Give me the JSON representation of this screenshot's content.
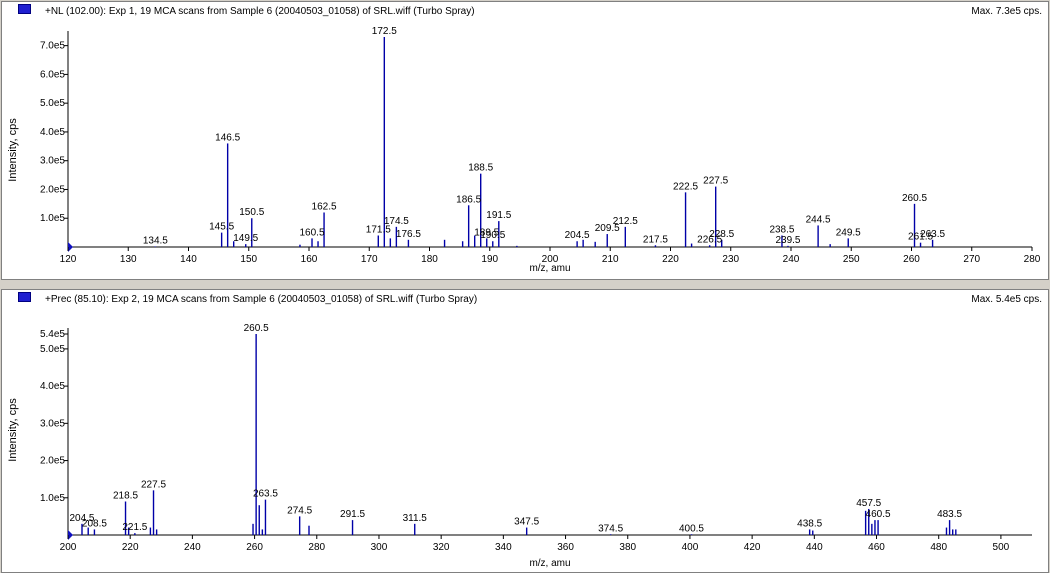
{
  "panes": [
    {
      "title": "+NL (102.00): Exp 1, 19 MCA scans from Sample 6 (20040503_01058) of SRL.wiff (Turbo Spray)",
      "max": "Max. 7.3e5 cps."
    },
    {
      "title": "+Prec (85.10): Exp 2, 19 MCA scans from Sample 6 (20040503_01058) of SRL.wiff (Turbo Spray)",
      "max": "Max. 5.4e5 cps."
    }
  ],
  "chart_data": [
    {
      "type": "bar",
      "title": "+NL (102.00): Exp 1, 19 MCA scans from Sample 6 (20040503_01058) of SRL.wiff (Turbo Spray)",
      "xlabel": "m/z, amu",
      "ylabel": "Intensity, cps",
      "xlim": [
        120,
        280
      ],
      "ylim": [
        0,
        730000
      ],
      "xticks": [
        120,
        130,
        140,
        150,
        160,
        170,
        180,
        190,
        200,
        210,
        220,
        230,
        240,
        250,
        260,
        270,
        280
      ],
      "yticks": [
        {
          "v": 100000,
          "label": "1.0e5"
        },
        {
          "v": 200000,
          "label": "2.0e5"
        },
        {
          "v": 300000,
          "label": "3.0e5"
        },
        {
          "v": 400000,
          "label": "4.0e5"
        },
        {
          "v": 500000,
          "label": "5.0e5"
        },
        {
          "v": 600000,
          "label": "6.0e5"
        },
        {
          "v": 700000,
          "label": "7.0e5"
        }
      ],
      "series": [
        {
          "values": [
            [
              134.5,
              2000
            ],
            [
              145.5,
              50000
            ],
            [
              146.5,
              360000
            ],
            [
              147.5,
              20000
            ],
            [
              149.5,
              10000
            ],
            [
              150.5,
              100000
            ],
            [
              158.5,
              8000
            ],
            [
              160.5,
              30000
            ],
            [
              161.5,
              20000
            ],
            [
              162.5,
              120000
            ],
            [
              171.5,
              40000
            ],
            [
              172.5,
              730000
            ],
            [
              173.5,
              30000
            ],
            [
              174.5,
              70000
            ],
            [
              176.5,
              25000
            ],
            [
              182.5,
              25000
            ],
            [
              185.5,
              20000
            ],
            [
              186.5,
              145000
            ],
            [
              187.5,
              40000
            ],
            [
              188.5,
              255000
            ],
            [
              189.5,
              30000
            ],
            [
              190.5,
              20000
            ],
            [
              191.5,
              90000
            ],
            [
              194.5,
              4000
            ],
            [
              204.5,
              20000
            ],
            [
              205.5,
              25000
            ],
            [
              207.5,
              18000
            ],
            [
              209.5,
              45000
            ],
            [
              212.5,
              70000
            ],
            [
              217.5,
              6000
            ],
            [
              222.5,
              190000
            ],
            [
              223.5,
              12000
            ],
            [
              226.5,
              6000
            ],
            [
              227.5,
              210000
            ],
            [
              228.5,
              25000
            ],
            [
              238.5,
              40000
            ],
            [
              239.5,
              4000
            ],
            [
              244.5,
              75000
            ],
            [
              246.5,
              10000
            ],
            [
              249.5,
              30000
            ],
            [
              260.5,
              150000
            ],
            [
              261.5,
              15000
            ],
            [
              263.5,
              25000
            ]
          ]
        }
      ],
      "annotations": [
        "172.5",
        "146.5",
        "188.5",
        "186.5",
        "191.5",
        "190.5",
        "189.5",
        "162.5",
        "160.5",
        "150.5",
        "149.5",
        "145.5",
        "134.5",
        "171.5",
        "174.5",
        "176.5",
        "204.5",
        "209.5",
        "212.5",
        "217.5",
        "222.5",
        "227.5",
        "226.5",
        "228.5",
        "238.5",
        "239.5",
        "244.5",
        "249.5",
        "260.5",
        "261.5",
        "263.5"
      ]
    },
    {
      "type": "bar",
      "title": "+Prec (85.10): Exp 2, 19 MCA scans from Sample 6 (20040503_01058) of SRL.wiff (Turbo Spray)",
      "xlabel": "m/z, amu",
      "ylabel": "Intensity, cps",
      "xlim": [
        200,
        510
      ],
      "ylim": [
        0,
        540000
      ],
      "xticks": [
        200,
        220,
        240,
        260,
        280,
        300,
        320,
        340,
        360,
        380,
        400,
        420,
        440,
        460,
        480,
        500
      ],
      "yticks": [
        {
          "v": 100000,
          "label": "1.0e5"
        },
        {
          "v": 200000,
          "label": "2.0e5"
        },
        {
          "v": 300000,
          "label": "3.0e5"
        },
        {
          "v": 400000,
          "label": "4.0e5"
        },
        {
          "v": 500000,
          "label": "5.0e5"
        },
        {
          "v": 540000,
          "label": "5.4e5"
        }
      ],
      "series": [
        {
          "values": [
            [
              204.5,
              30000
            ],
            [
              206.5,
              20000
            ],
            [
              208.5,
              15000
            ],
            [
              218.5,
              90000
            ],
            [
              219.5,
              20000
            ],
            [
              221.5,
              5000
            ],
            [
              226.5,
              20000
            ],
            [
              227.5,
              120000
            ],
            [
              228.5,
              15000
            ],
            [
              259.5,
              30000
            ],
            [
              260.5,
              540000
            ],
            [
              261.5,
              80000
            ],
            [
              262.5,
              15000
            ],
            [
              263.5,
              95000
            ],
            [
              274.5,
              50000
            ],
            [
              277.5,
              25000
            ],
            [
              291.5,
              40000
            ],
            [
              311.5,
              30000
            ],
            [
              347.5,
              20000
            ],
            [
              374.5,
              2000
            ],
            [
              400.5,
              2000
            ],
            [
              438.5,
              15000
            ],
            [
              439.5,
              12000
            ],
            [
              456.5,
              65000
            ],
            [
              457.5,
              70000
            ],
            [
              458.5,
              30000
            ],
            [
              459.5,
              40000
            ],
            [
              460.5,
              40000
            ],
            [
              482.5,
              20000
            ],
            [
              483.5,
              40000
            ],
            [
              484.5,
              15000
            ],
            [
              485.5,
              15000
            ]
          ]
        }
      ],
      "annotations": [
        "260.5",
        "263.5",
        "227.5",
        "218.5",
        "208.5",
        "204.5",
        "221.5",
        "274.5",
        "291.5",
        "311.5",
        "347.5",
        "374.5",
        "400.5",
        "438.5",
        "457.5",
        "460.5",
        "483.5"
      ]
    }
  ]
}
